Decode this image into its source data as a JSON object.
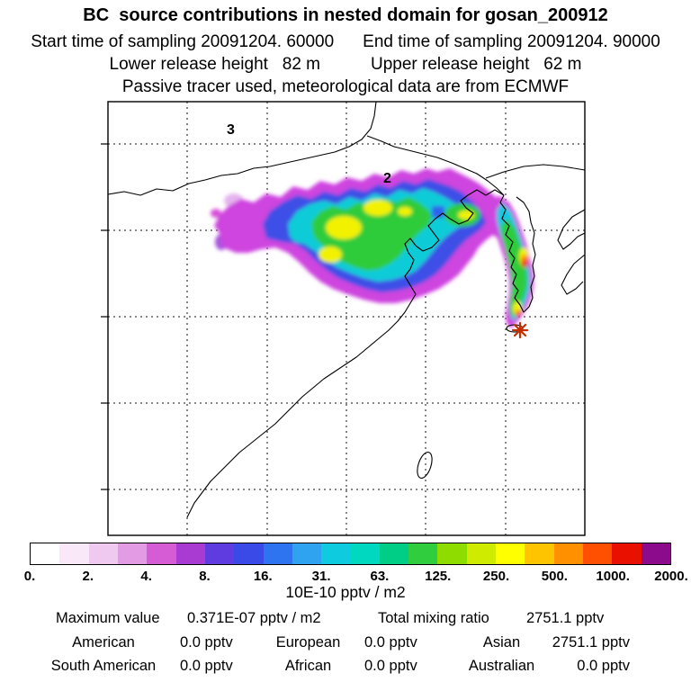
{
  "header": {
    "title": "BC  source contributions in nested domain for gosan_200912",
    "start_time": "Start time of sampling 20091204. 60000",
    "end_time": "End time of sampling 20091204. 90000",
    "lower_release": "Lower release height   82 m",
    "upper_release": "Upper release height   62 m",
    "tracer_note": "Passive tracer used, meteorological data are from ECMWF"
  },
  "map": {
    "domain_label_outer": "3",
    "domain_label_inner": "2",
    "station": "gosan"
  },
  "chart_data": {
    "type": "heatmap",
    "title": "BC source contributions in nested domain for gosan_200912",
    "subtitle": "Passive tracer used, meteorological data are from ECMWF",
    "sampling": {
      "start": "20091204. 60000",
      "end": "20091204. 90000"
    },
    "release_heights": {
      "lower": "82 m",
      "upper": "62 m"
    },
    "colorbar": {
      "tick_labels": [
        "0.",
        "2.",
        "4.",
        "8.",
        "16.",
        "31.",
        "63.",
        "125.",
        "250.",
        "500.",
        "1000.",
        "2000."
      ],
      "units_label": "10E-10 pptv / m2",
      "colors": [
        "#ffffff",
        "#f8e8f8",
        "#efc9ef",
        "#e39ce3",
        "#d55cd5",
        "#a93ad2",
        "#5f3ce0",
        "#3a4ae6",
        "#2e73f0",
        "#2fa3f0",
        "#0fcbe0",
        "#00d8c0",
        "#00cd86",
        "#30ce3e",
        "#8edc00",
        "#cfeb00",
        "#ffff00",
        "#ffc400",
        "#ff9000",
        "#ff4f00",
        "#ea1000",
        "#8c0a8c"
      ]
    },
    "map_labels": [
      "3",
      "2"
    ],
    "stats": {
      "maximum_value": "0.371E-07 pptv / m2",
      "total_mixing_ratio": "2751.1 pptv",
      "contributions": [
        {
          "region": "American",
          "value": "0.0 pptv"
        },
        {
          "region": "European",
          "value": "0.0 pptv"
        },
        {
          "region": "Asian",
          "value": "2751.1 pptv"
        },
        {
          "region": "South American",
          "value": "0.0 pptv"
        },
        {
          "region": "African",
          "value": "0.0 pptv"
        },
        {
          "region": "Australian",
          "value": "0.0 pptv"
        }
      ]
    }
  },
  "footer": {
    "max_label": "Maximum value",
    "total_label": "Total mixing ratio"
  }
}
